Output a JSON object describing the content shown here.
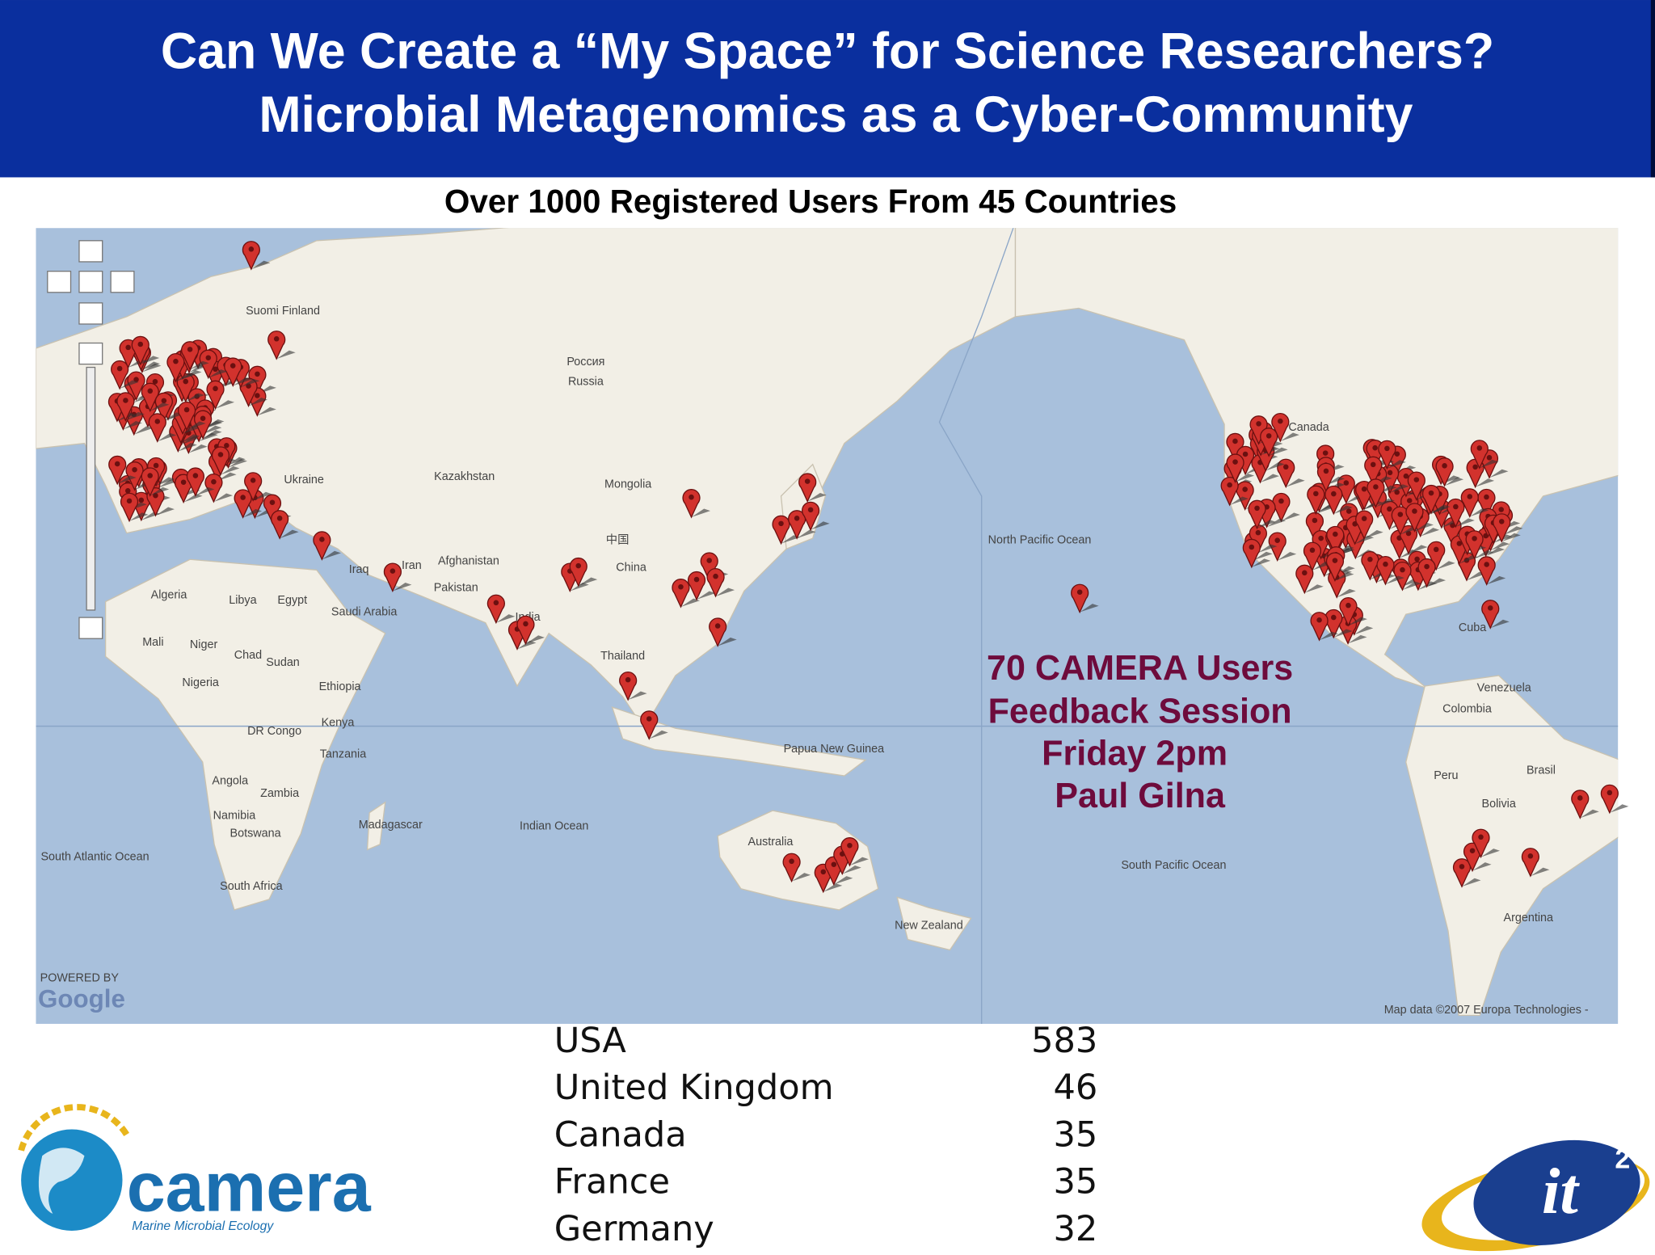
{
  "header": {
    "title_line_1": "Can We Create a “My Space” for Science Researchers?",
    "title_line_2": "Microbial Metagenomics as a Cyber-Community"
  },
  "subtitle": "Over 1000 Registered Users From 45 Countries",
  "map": {
    "labels": [
      "Россия",
      "Russia",
      "Kazakhstan",
      "Mongolia",
      "中国",
      "China",
      "Canada",
      "North Pacific Ocean",
      "South Pacific Ocean",
      "Indian Ocean",
      "South Atlantic Ocean",
      "Australia",
      "New Zealand",
      "Brasil",
      "Argentina",
      "Venezuela",
      "Colombia",
      "Peru",
      "Bolivia",
      "Cuba",
      "Algeria",
      "Libya",
      "Egypt",
      "Mali",
      "Niger",
      "Chad",
      "Sudan",
      "Nigeria",
      "Ethiopia",
      "Kenya",
      "Tanzania",
      "DR Congo",
      "Angola",
      "Zambia",
      "Namibia",
      "Botswana",
      "Madagascar",
      "South Africa",
      "Saudi Arabia",
      "Iraq",
      "Iran",
      "Afghanistan",
      "Pakistan",
      "India",
      "Thailand",
      "Papua New Guinea",
      "Suomi Finland",
      "Ukraine"
    ],
    "attribution": "Map data ©2007 Europa Technologies -",
    "powered_by": "POWERED BY",
    "google": "Google"
  },
  "annotation": {
    "lines": [
      "70 CAMERA Users",
      "Feedback Session",
      "Friday 2pm",
      "Paul Gilna"
    ]
  },
  "table": {
    "rows": [
      [
        "USA",
        583
      ],
      [
        "United Kingdom",
        46
      ],
      [
        "Canada",
        35
      ],
      [
        "France",
        35
      ],
      [
        "Germany",
        32
      ]
    ]
  },
  "logos": {
    "camera": "camera",
    "camera_tagline": "Marine Microbial Ecology",
    "it2": "it",
    "it2_superscript": "2"
  }
}
